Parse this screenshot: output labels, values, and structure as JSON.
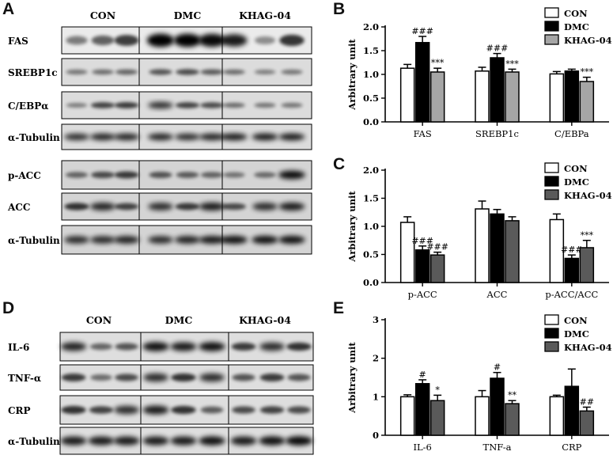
{
  "panels": {
    "A": {
      "letter": "A",
      "groups": [
        "CON",
        "DMC",
        "KHAG-04"
      ],
      "blots_top": [
        "FAS",
        "SREBP1c",
        "C/EBPα",
        "α-Tubulin"
      ],
      "blots_bottom": [
        "p-ACC",
        "ACC",
        "α-Tubulin"
      ]
    },
    "D": {
      "letter": "D",
      "groups": [
        "CON",
        "DMC",
        "KHAG-04"
      ],
      "blots": [
        "IL-6",
        "TNF-α",
        "CRP",
        "α-Tubulin"
      ]
    },
    "B": {
      "letter": "B"
    },
    "C": {
      "letter": "C"
    },
    "E": {
      "letter": "E"
    }
  },
  "chart_data": [
    {
      "panel": "B",
      "type": "bar",
      "categories": [
        "FAS",
        "SREBP1c",
        "C/EBPa"
      ],
      "ylabel": "Arbitrary unit",
      "ylim": [
        0,
        2.0
      ],
      "yticks": [
        "0.0",
        "0.5",
        "1.0",
        "1.5",
        "2.0"
      ],
      "legend_position": "top-right",
      "series": [
        {
          "name": "CON",
          "color": "#ffffff",
          "values": [
            1.13,
            1.07,
            1.01
          ],
          "errors": [
            0.08,
            0.08,
            0.05
          ],
          "labels": [
            "",
            "",
            ""
          ]
        },
        {
          "name": "DMC",
          "color": "#000000",
          "values": [
            1.67,
            1.35,
            1.07
          ],
          "errors": [
            0.13,
            0.09,
            0.04
          ],
          "labels": [
            "###",
            "###",
            ""
          ]
        },
        {
          "name": "KHAG-04",
          "color": "#a6a6a6",
          "values": [
            1.05,
            1.05,
            0.85
          ],
          "errors": [
            0.08,
            0.06,
            0.09
          ],
          "labels": [
            "***",
            "***",
            "***"
          ]
        }
      ]
    },
    {
      "panel": "C",
      "type": "bar",
      "categories": [
        "p-ACC",
        "ACC",
        "p-ACC/ACC"
      ],
      "ylabel": "Arbitrary unit",
      "ylim": [
        0,
        2.0
      ],
      "yticks": [
        "0.0",
        "0.5",
        "1.0",
        "1.5",
        "2.0"
      ],
      "legend_position": "top-right",
      "series": [
        {
          "name": "CON",
          "color": "#ffffff",
          "values": [
            1.07,
            1.31,
            1.12
          ],
          "errors": [
            0.1,
            0.14,
            0.1
          ],
          "labels": [
            "",
            "",
            ""
          ]
        },
        {
          "name": "DMC",
          "color": "#000000",
          "values": [
            0.58,
            1.22,
            0.43
          ],
          "errors": [
            0.07,
            0.08,
            0.06
          ],
          "labels": [
            "###",
            "",
            "###"
          ]
        },
        {
          "name": "KHAG-04",
          "color": "#5a5a5a",
          "values": [
            0.49,
            1.1,
            0.62
          ],
          "errors": [
            0.05,
            0.07,
            0.13
          ],
          "labels": [
            "###",
            "",
            "***"
          ]
        }
      ]
    },
    {
      "panel": "E",
      "type": "bar",
      "categories": [
        "IL-6",
        "TNF-a",
        "CRP"
      ],
      "ylabel": "Arbitrary unit",
      "ylim": [
        0,
        3
      ],
      "yticks": [
        "0",
        "1",
        "2",
        "3"
      ],
      "legend_position": "top-right",
      "series": [
        {
          "name": "CON",
          "color": "#ffffff",
          "values": [
            1.0,
            1.0,
            1.0
          ],
          "errors": [
            0.05,
            0.16,
            0.04
          ],
          "labels": [
            "",
            "",
            ""
          ]
        },
        {
          "name": "DMC",
          "color": "#000000",
          "values": [
            1.34,
            1.48,
            1.27
          ],
          "errors": [
            0.1,
            0.15,
            0.45
          ],
          "labels": [
            "#",
            "#",
            ""
          ]
        },
        {
          "name": "KHAG-04",
          "color": "#5a5a5a",
          "values": [
            0.9,
            0.82,
            0.63
          ],
          "errors": [
            0.14,
            0.08,
            0.1
          ],
          "labels": [
            "*",
            "**",
            "##"
          ]
        }
      ]
    }
  ]
}
